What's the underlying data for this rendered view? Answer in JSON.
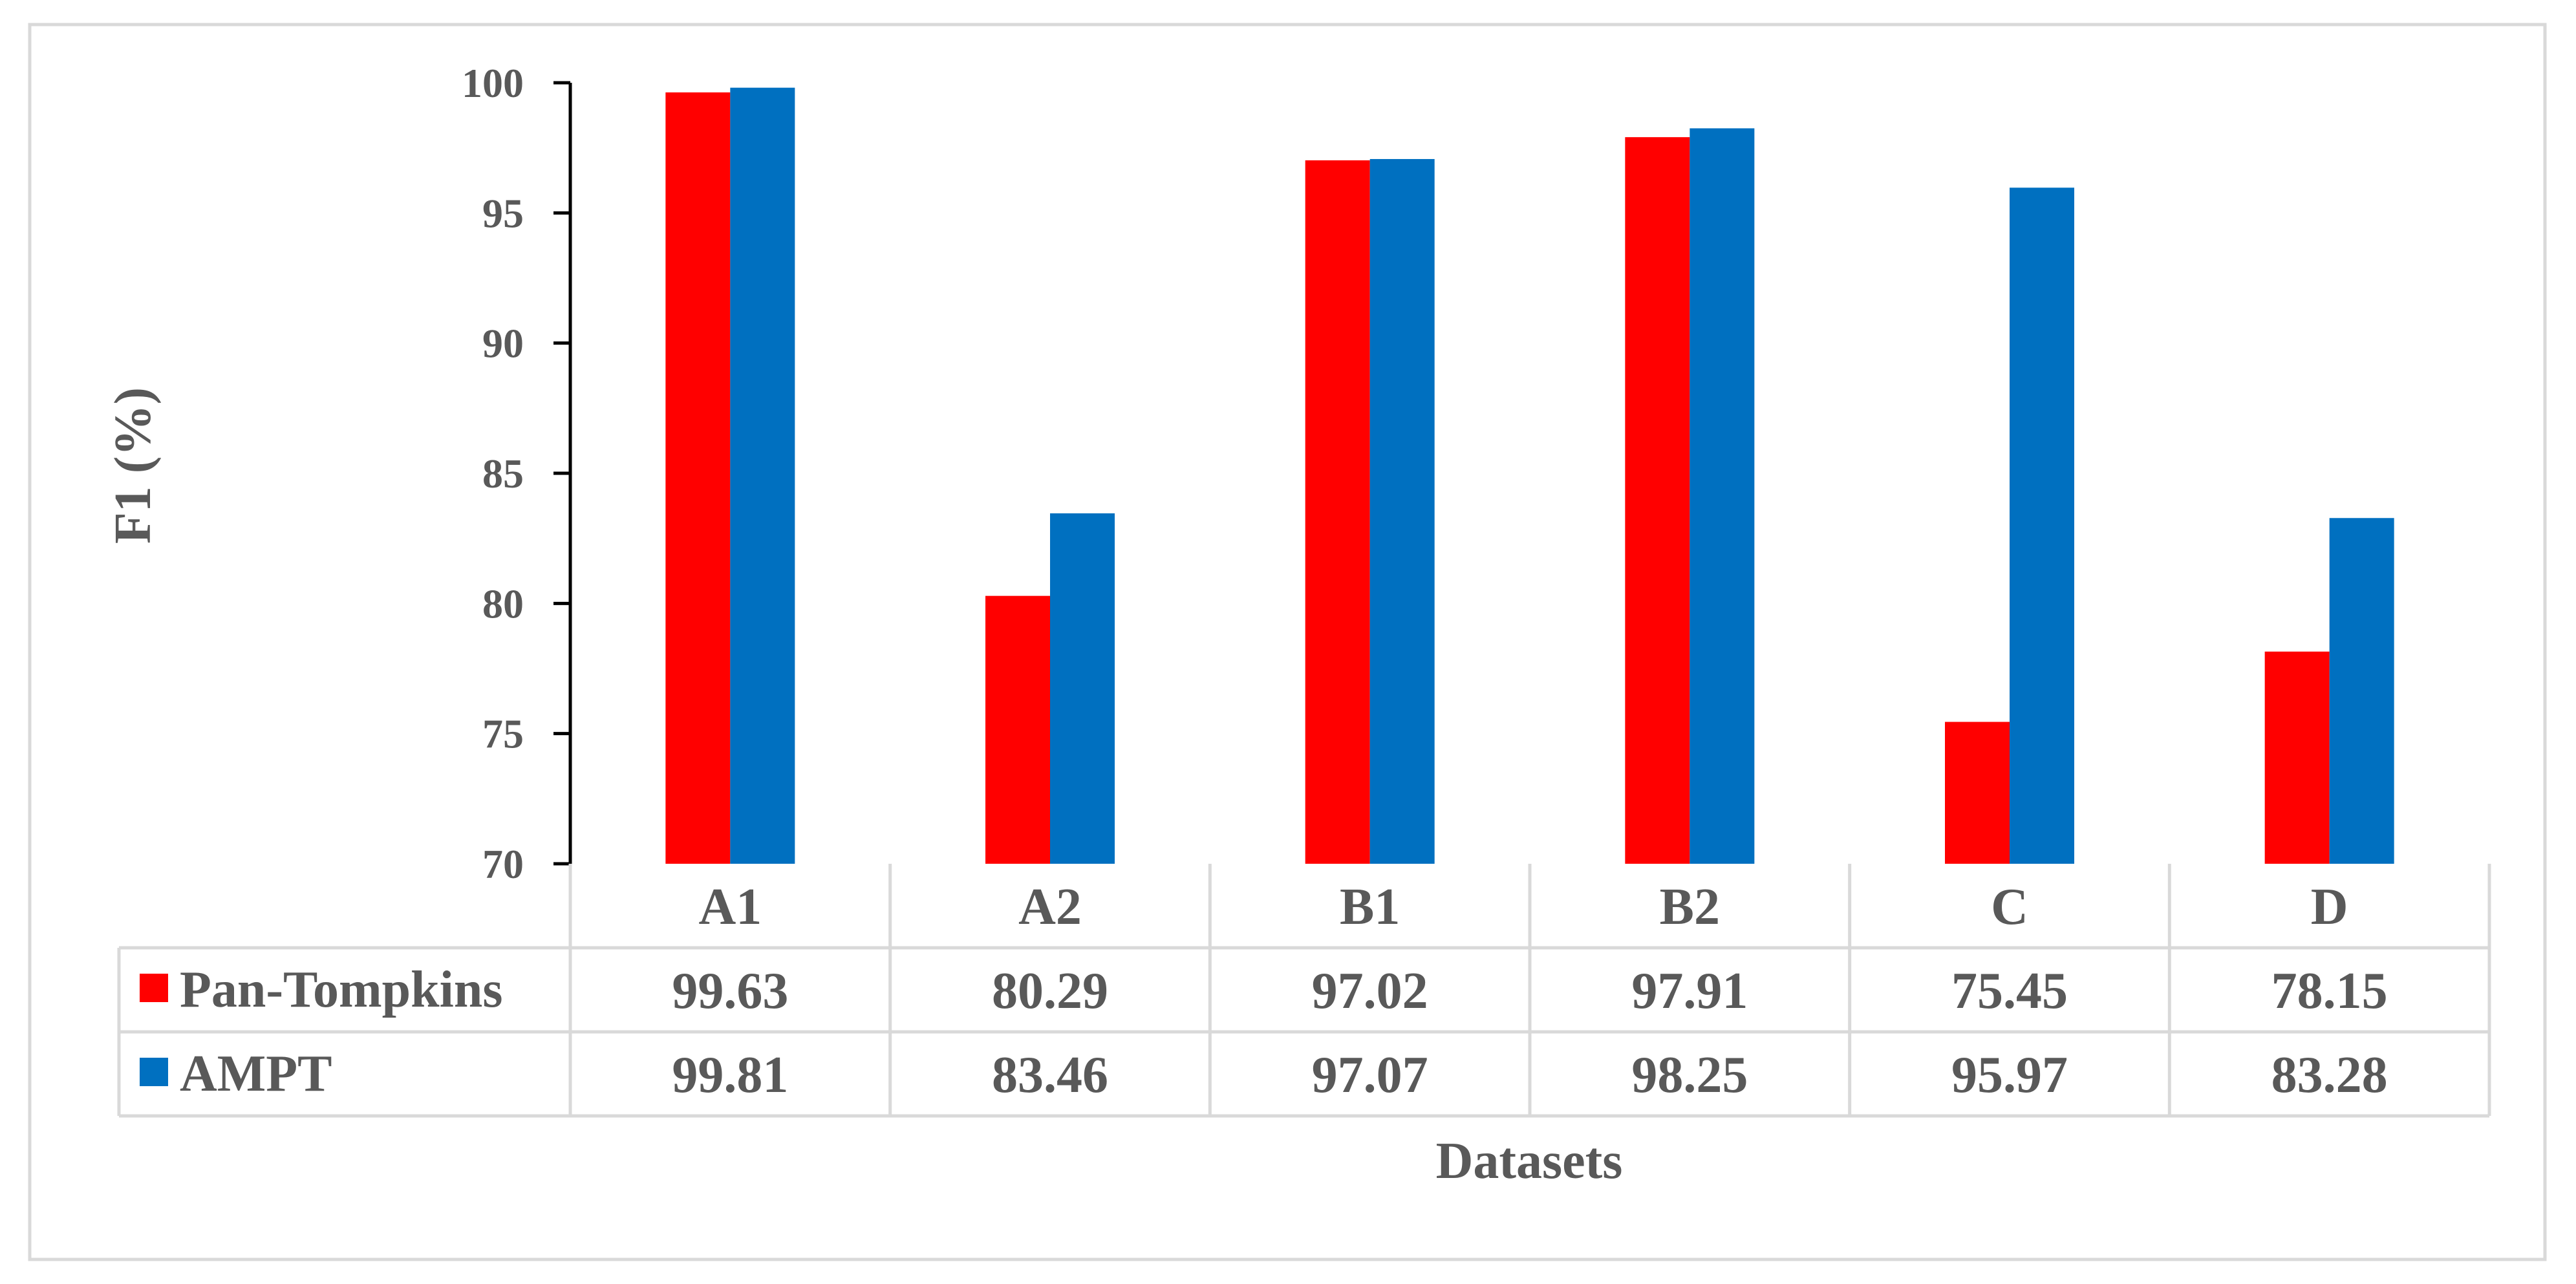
{
  "chart_data": {
    "type": "bar",
    "categories": [
      "A1",
      "A2",
      "B1",
      "B2",
      "C",
      "D"
    ],
    "series": [
      {
        "name": "Pan-Tompkins",
        "values": [
          99.63,
          80.29,
          97.02,
          97.91,
          75.45,
          78.15
        ],
        "display": [
          "99.63",
          "80.29",
          "97.02",
          "97.91",
          "75.45",
          "78.15"
        ],
        "color": "#ff0000"
      },
      {
        "name": "AMPT",
        "values": [
          99.81,
          83.46,
          97.07,
          98.25,
          95.97,
          83.28
        ],
        "display": [
          "99.81",
          "83.46",
          "97.07",
          "98.25",
          "95.97",
          "83.28"
        ],
        "color": "#0070c0"
      }
    ],
    "xlabel": "Datasets",
    "ylabel": "F1 (%)",
    "ylim": [
      70,
      100
    ],
    "yticks": [
      "70",
      "75",
      "80",
      "85",
      "90",
      "95",
      "100"
    ],
    "legend": "data-table-left",
    "grid": false
  }
}
